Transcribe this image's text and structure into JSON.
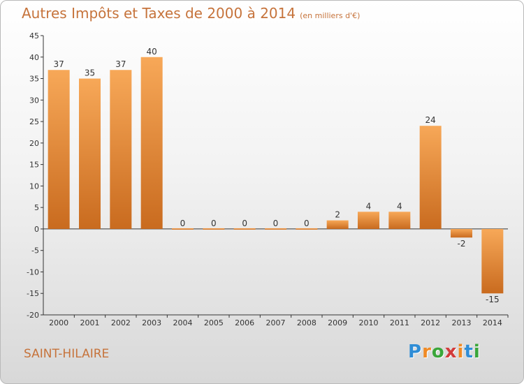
{
  "title": {
    "main": "Autres Impôts et Taxes de 2000 à 2014",
    "unit": "(en milliers d'€)"
  },
  "commune": "SAINT-HILAIRE",
  "logo": {
    "letters": [
      "P",
      "r",
      "o",
      "x",
      "i",
      "t",
      "i"
    ],
    "colors": [
      "#2f8dd6",
      "#f08a24",
      "#3aa63a",
      "#d23b3b",
      "#f08a24",
      "#2f8dd6",
      "#3aa63a"
    ]
  },
  "colors": {
    "bar_light": "#f7a858",
    "bar_dark": "#c96b1f",
    "axis": "#333333",
    "grid": "#cccccc",
    "title": "#c6733b"
  },
  "chart_data": {
    "type": "bar",
    "categories": [
      "2000",
      "2001",
      "2002",
      "2003",
      "2004",
      "2005",
      "2006",
      "2007",
      "2008",
      "2009",
      "2010",
      "2011",
      "2012",
      "2013",
      "2014"
    ],
    "values": [
      37,
      35,
      37,
      40,
      0,
      0,
      0,
      0,
      0,
      2,
      4,
      4,
      24,
      -2,
      -15
    ],
    "data_labels": [
      "37",
      "35",
      "37",
      "40",
      "0",
      "0",
      "0",
      "0",
      "0",
      "2",
      "4",
      "4",
      "24",
      "-2",
      "-15"
    ],
    "title": "Autres Impôts et Taxes de 2000 à 2014",
    "ylim": [
      -20,
      45
    ],
    "yticks": [
      45,
      40,
      35,
      30,
      25,
      20,
      15,
      10,
      5,
      0,
      -5,
      -10,
      -15,
      -20
    ],
    "grid": false
  }
}
